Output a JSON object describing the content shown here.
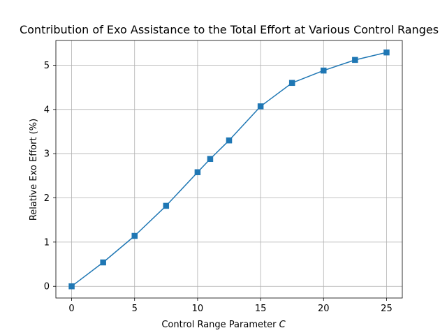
{
  "chart_data": {
    "type": "line",
    "title": "Contribution of Exo Assistance to the Total Effort at Various Control Ranges",
    "xlabel_prefix": "Control Range Parameter",
    "xlabel_symbol": "C",
    "ylabel": "Relative Exo Effort (%)",
    "xlim": [
      -1.25,
      26.25
    ],
    "ylim": [
      -0.265,
      5.56
    ],
    "xticks": [
      0,
      5,
      10,
      15,
      20,
      25
    ],
    "yticks": [
      0,
      1,
      2,
      3,
      4,
      5
    ],
    "grid": true,
    "series": [
      {
        "color": "#1f77b4",
        "marker": "square",
        "x": [
          0,
          2.5,
          5,
          7.5,
          10,
          11,
          12.5,
          15,
          17.5,
          20,
          22.5,
          25
        ],
        "y": [
          0.0,
          0.54,
          1.14,
          1.82,
          2.58,
          2.88,
          3.3,
          4.07,
          4.6,
          4.88,
          5.12,
          5.29
        ]
      }
    ]
  }
}
